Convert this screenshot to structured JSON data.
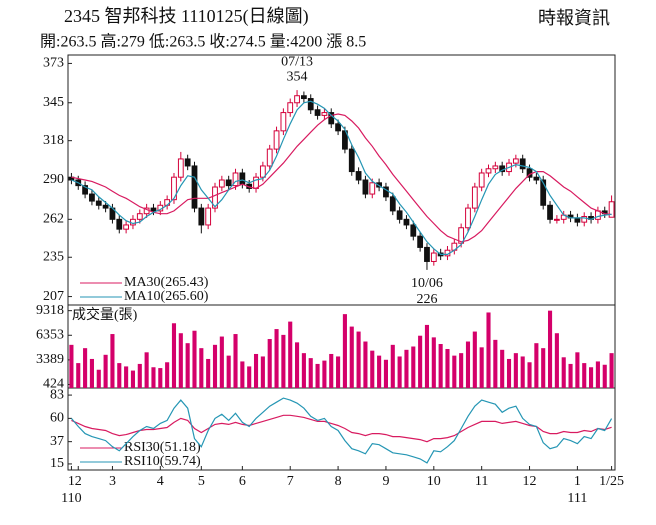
{
  "chart_data": [
    {
      "type": "candlestick",
      "title": "2345  智邦科技 1110125(日線圖)",
      "source": "時報資訊",
      "subtitle": "開:263.5 高:279 低:263.5 收:274.5 量:4200 漲 8.5",
      "up_color": "#d4003a",
      "down_color": "#111111",
      "ohlc": [
        [
          292,
          295,
          287,
          290
        ],
        [
          290,
          293,
          283,
          286
        ],
        [
          286,
          289,
          277,
          280
        ],
        [
          280,
          283,
          272,
          275
        ],
        [
          275,
          278,
          269,
          272
        ],
        [
          272,
          275,
          267,
          270
        ],
        [
          270,
          273,
          259,
          262
        ],
        [
          262,
          265,
          252,
          255
        ],
        [
          255,
          261,
          252,
          258
        ],
        [
          258,
          265,
          255,
          262
        ],
        [
          262,
          269,
          259,
          266
        ],
        [
          266,
          273,
          263,
          270
        ],
        [
          270,
          273,
          265,
          268
        ],
        [
          268,
          275,
          265,
          272
        ],
        [
          272,
          279,
          269,
          276
        ],
        [
          276,
          295,
          273,
          292
        ],
        [
          292,
          310,
          289,
          305
        ],
        [
          305,
          308,
          297,
          300
        ],
        [
          300,
          303,
          267,
          270
        ],
        [
          270,
          273,
          252,
          258
        ],
        [
          258,
          273,
          255,
          270
        ],
        [
          270,
          288,
          267,
          285
        ],
        [
          285,
          293,
          282,
          290
        ],
        [
          290,
          293,
          283,
          286
        ],
        [
          286,
          298,
          283,
          295
        ],
        [
          295,
          298,
          284,
          287
        ],
        [
          287,
          290,
          281,
          284
        ],
        [
          284,
          295,
          281,
          292
        ],
        [
          292,
          303,
          289,
          300
        ],
        [
          300,
          315,
          297,
          312
        ],
        [
          312,
          328,
          309,
          325
        ],
        [
          325,
          341,
          322,
          338
        ],
        [
          338,
          348,
          335,
          345
        ],
        [
          345,
          354,
          342,
          350
        ],
        [
          350,
          353,
          345,
          348
        ],
        [
          348,
          351,
          337,
          340
        ],
        [
          340,
          343,
          333,
          336
        ],
        [
          336,
          341,
          333,
          338
        ],
        [
          338,
          341,
          327,
          330
        ],
        [
          330,
          333,
          322,
          325
        ],
        [
          325,
          328,
          309,
          312
        ],
        [
          312,
          315,
          293,
          296
        ],
        [
          296,
          299,
          287,
          290
        ],
        [
          290,
          293,
          277,
          280
        ],
        [
          280,
          291,
          277,
          288
        ],
        [
          288,
          291,
          282,
          285
        ],
        [
          285,
          288,
          275,
          278
        ],
        [
          278,
          281,
          265,
          268
        ],
        [
          268,
          271,
          259,
          262
        ],
        [
          262,
          265,
          255,
          258
        ],
        [
          258,
          261,
          247,
          250
        ],
        [
          250,
          253,
          239,
          242
        ],
        [
          242,
          245,
          226,
          232
        ],
        [
          232,
          241,
          229,
          238
        ],
        [
          238,
          241,
          233,
          236
        ],
        [
          236,
          243,
          233,
          240
        ],
        [
          240,
          248,
          237,
          245
        ],
        [
          245,
          259,
          242,
          256
        ],
        [
          256,
          273,
          253,
          270
        ],
        [
          270,
          288,
          267,
          285
        ],
        [
          285,
          298,
          282,
          295
        ],
        [
          295,
          301,
          292,
          298
        ],
        [
          298,
          303,
          295,
          300
        ],
        [
          300,
          303,
          293,
          296
        ],
        [
          296,
          305,
          293,
          302
        ],
        [
          302,
          308,
          299,
          305
        ],
        [
          305,
          308,
          295,
          298
        ],
        [
          298,
          301,
          289,
          292
        ],
        [
          292,
          295,
          287,
          290
        ],
        [
          290,
          293,
          269,
          272
        ],
        [
          272,
          275,
          259,
          262
        ],
        [
          262,
          265,
          259,
          262
        ],
        [
          262,
          268,
          259,
          265
        ],
        [
          265,
          268,
          260,
          263
        ],
        [
          263,
          266,
          257,
          260
        ],
        [
          260,
          267,
          257,
          264
        ],
        [
          264,
          267,
          259,
          262
        ],
        [
          262,
          271,
          259,
          268
        ],
        [
          268,
          271,
          263,
          266
        ],
        [
          263.5,
          279,
          263.5,
          274.5
        ]
      ],
      "series": [
        {
          "name": "MA30(265.43)",
          "color": "#d81b60",
          "values": [
            292,
            291,
            290,
            289,
            287,
            285,
            282,
            279,
            277,
            274,
            271,
            269,
            267,
            266,
            266,
            268,
            272,
            276,
            277,
            277,
            277,
            279,
            281,
            283,
            285,
            287,
            285,
            284,
            287,
            292,
            297,
            302,
            308,
            314,
            319,
            324,
            329,
            333,
            336,
            337,
            336,
            332,
            327,
            320,
            314,
            307,
            301,
            294,
            288,
            282,
            276,
            270,
            264,
            259,
            254,
            250,
            248,
            246,
            247,
            250,
            254,
            260,
            266,
            272,
            278,
            284,
            289,
            294,
            296,
            296,
            293,
            289,
            285,
            282,
            278,
            274,
            270,
            268,
            266,
            265.43
          ]
        },
        {
          "name": "MA10(265.60)",
          "color": "#2596b4",
          "values": [
            290,
            288,
            285,
            283,
            278,
            274,
            270,
            265,
            261,
            259,
            260,
            264,
            267,
            269,
            272,
            277,
            286,
            293,
            292,
            283,
            277,
            271,
            276,
            283,
            289,
            290,
            288,
            290,
            291,
            297,
            307,
            319,
            330,
            340,
            345,
            346,
            344,
            341,
            336,
            332,
            326,
            315,
            306,
            295,
            289,
            286,
            283,
            280,
            273,
            267,
            260,
            253,
            246,
            241,
            237,
            237,
            240,
            244,
            253,
            264,
            276,
            287,
            294,
            297,
            299,
            301,
            300,
            299,
            296,
            288,
            279,
            272,
            265,
            263,
            263,
            263,
            262,
            264,
            265,
            265.6
          ]
        }
      ],
      "high_label": {
        "date": "07/13",
        "value": 354
      },
      "low_label": {
        "date": "10/06",
        "value": 226
      },
      "ylim": [
        201,
        379
      ],
      "yticks": [
        373,
        345,
        318,
        290,
        262,
        235,
        207
      ],
      "xticks": [
        {
          "value": 0,
          "label": "1"
        },
        {
          "value": 1,
          "label": "2"
        },
        {
          "value": 6,
          "label": "3"
        },
        {
          "value": 13,
          "label": "4"
        },
        {
          "value": 19,
          "label": "5"
        },
        {
          "value": 25,
          "label": "6"
        },
        {
          "value": 32,
          "label": "7"
        },
        {
          "value": 39,
          "label": "8"
        },
        {
          "value": 46,
          "label": "9"
        },
        {
          "value": 53,
          "label": "10"
        },
        {
          "value": 60,
          "label": "11"
        },
        {
          "value": 67,
          "label": "12"
        },
        {
          "value": 74,
          "label": "1"
        },
        {
          "value": 79,
          "label": "1/25"
        }
      ],
      "year_labels": [
        {
          "value": 0,
          "label": "110"
        },
        {
          "value": 74,
          "label": "111"
        }
      ]
    },
    {
      "type": "bar",
      "title": "成交量(張)",
      "color": "#d4006a",
      "values": [
        5200,
        3000,
        4800,
        3500,
        2200,
        4000,
        6500,
        3000,
        2600,
        2100,
        2900,
        4300,
        2500,
        2400,
        3100,
        7800,
        6600,
        5400,
        6900,
        4800,
        3500,
        5200,
        6200,
        3900,
        6500,
        3200,
        2600,
        4100,
        3800,
        5900,
        7100,
        6400,
        8000,
        5500,
        4200,
        3600,
        2900,
        3300,
        4100,
        3800,
        8900,
        7400,
        6800,
        5600,
        4500,
        3900,
        3400,
        5200,
        3800,
        4600,
        5000,
        6300,
        7600,
        6100,
        5300,
        4700,
        3900,
        4200,
        5600,
        6800,
        4900,
        9100,
        5800,
        4600,
        3500,
        4200,
        3800,
        3100,
        5400,
        4800,
        9318,
        6600,
        3700,
        2900,
        4300,
        3000,
        2500,
        3200,
        2800,
        4200
      ],
      "ylim": [
        0,
        10000
      ],
      "yticks": [
        9318,
        6353,
        3389,
        424
      ]
    },
    {
      "type": "line",
      "series": [
        {
          "name": "RSI30(51.18)",
          "color": "#d81b60",
          "values": [
            58,
            55,
            52,
            50,
            49,
            48,
            45,
            43,
            44,
            46,
            48,
            49,
            49,
            50,
            51,
            56,
            60,
            58,
            50,
            46,
            50,
            54,
            55,
            54,
            56,
            54,
            53,
            55,
            57,
            59,
            61,
            63,
            63,
            62,
            61,
            59,
            57,
            57,
            55,
            53,
            50,
            46,
            45,
            43,
            45,
            45,
            44,
            42,
            42,
            41,
            40,
            39,
            37,
            40,
            40,
            41,
            43,
            47,
            51,
            54,
            57,
            57,
            57,
            55,
            56,
            57,
            55,
            53,
            52,
            47,
            45,
            45,
            47,
            46,
            46,
            48,
            47,
            50,
            49,
            51.18
          ]
        },
        {
          "name": "RSI10(59.74)",
          "color": "#2596b4",
          "values": [
            60,
            52,
            45,
            42,
            40,
            38,
            32,
            28,
            35,
            42,
            48,
            52,
            50,
            55,
            58,
            70,
            78,
            70,
            40,
            32,
            48,
            60,
            64,
            58,
            65,
            56,
            52,
            60,
            66,
            72,
            76,
            80,
            78,
            75,
            70,
            62,
            58,
            60,
            52,
            48,
            38,
            30,
            28,
            25,
            35,
            34,
            30,
            26,
            25,
            24,
            22,
            20,
            16,
            28,
            27,
            32,
            38,
            50,
            62,
            72,
            78,
            76,
            74,
            66,
            70,
            72,
            60,
            54,
            52,
            36,
            30,
            32,
            40,
            38,
            35,
            42,
            40,
            50,
            48,
            59.74
          ]
        }
      ],
      "ylim": [
        9,
        90
      ],
      "yticks": [
        83,
        60,
        37,
        15
      ]
    }
  ]
}
